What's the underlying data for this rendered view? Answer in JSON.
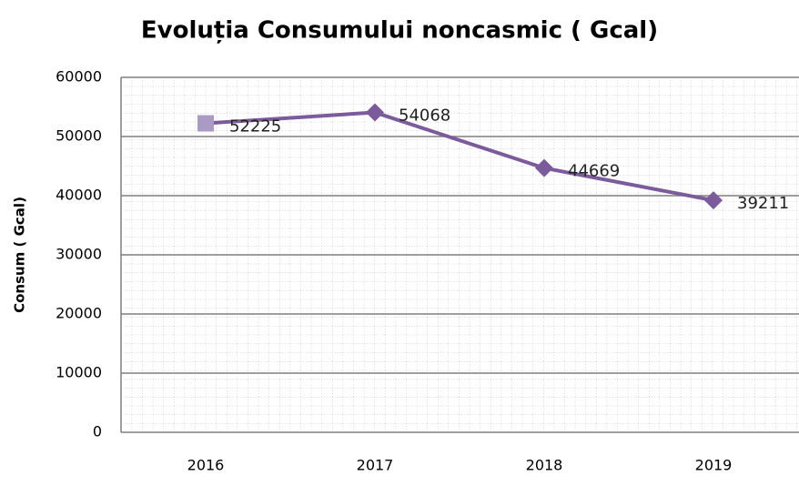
{
  "chart_data": {
    "type": "line",
    "title": "Evoluția Consumului noncasmic ( Gcal)",
    "y_label": "Consum  ( Gcal)",
    "categories": [
      "2016",
      "2017",
      "2018",
      "2019"
    ],
    "values": [
      52225,
      54068,
      44669,
      39211
    ],
    "color": "#7b5b9c",
    "marker_colors": [
      "#a99bc6",
      "#7b5b9c",
      "#7b5b9c",
      "#7b5b9c"
    ],
    "marker_shapes": [
      "square",
      "diamond",
      "diamond",
      "diamond"
    ],
    "ylim": [
      0,
      60000
    ],
    "yticks": [
      0,
      10000,
      20000,
      30000,
      40000,
      50000,
      60000
    ],
    "grid": true
  }
}
